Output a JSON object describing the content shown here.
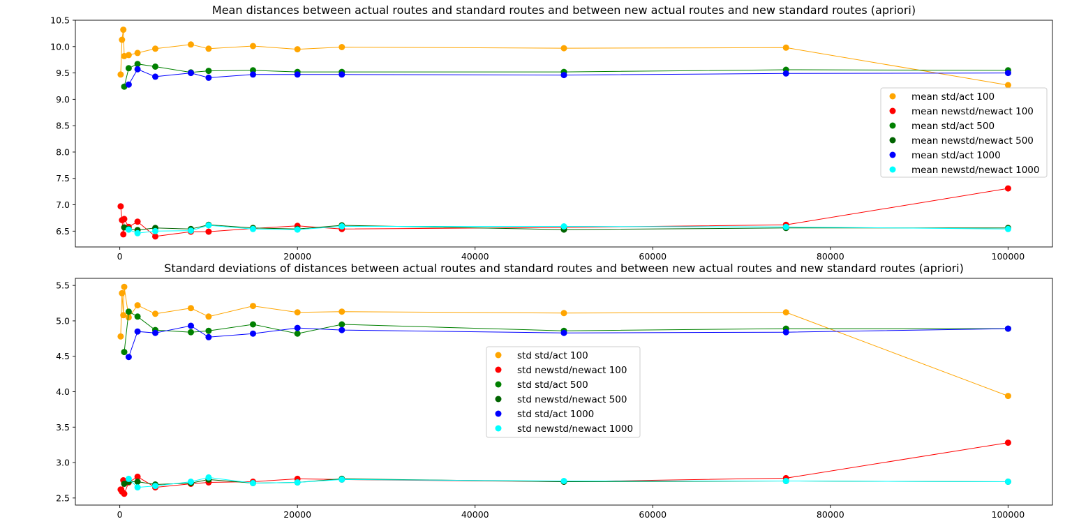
{
  "chart_data": [
    {
      "type": "line",
      "title": "Mean distances between actual routes and standard routes and between new actual routes and new standard routes (apriori)",
      "xlabel": "",
      "ylabel": "",
      "xlim": [
        -5000,
        105000
      ],
      "ylim": [
        6.2,
        10.5
      ],
      "xticks": [
        0,
        20000,
        40000,
        60000,
        80000,
        100000
      ],
      "xtick_labels": [
        "0",
        "20000",
        "40000",
        "60000",
        "80000",
        "100000"
      ],
      "yticks": [
        6.5,
        7.0,
        7.5,
        8.0,
        8.5,
        9.0,
        9.5,
        10.0,
        10.5
      ],
      "ytick_labels": [
        "6.5",
        "7.0",
        "7.5",
        "8.0",
        "8.5",
        "9.0",
        "9.5",
        "10.0",
        "10.5"
      ],
      "grid": false,
      "legend_position": "center-right",
      "x": [
        100,
        250,
        400,
        500,
        1000,
        2000,
        4000,
        8000,
        10000,
        15000,
        20000,
        25000,
        50000,
        75000,
        100000
      ],
      "series": [
        {
          "name": "mean std/act 100",
          "color": "#ffa500",
          "values": [
            9.47,
            10.13,
            10.32,
            9.82,
            9.84,
            9.88,
            9.96,
            10.04,
            9.96,
            10.01,
            9.95,
            9.99,
            9.97,
            9.98,
            9.27
          ]
        },
        {
          "name": "mean newstd/newact 100",
          "color": "#ff0000",
          "values": [
            6.97,
            6.71,
            6.44,
            6.73,
            6.58,
            6.68,
            6.4,
            6.49,
            6.49,
            6.55,
            6.6,
            6.54,
            6.57,
            6.62,
            7.31
          ]
        },
        {
          "name": "mean std/act 500",
          "color": "#008000",
          "values": [
            null,
            null,
            null,
            9.24,
            9.59,
            9.67,
            9.62,
            9.51,
            9.54,
            9.55,
            9.52,
            9.52,
            9.52,
            9.56,
            9.55
          ]
        },
        {
          "name": "mean newstd/newact 500",
          "color": "#006400",
          "values": [
            null,
            null,
            null,
            6.57,
            6.54,
            6.52,
            6.56,
            6.54,
            6.62,
            6.56,
            6.54,
            6.61,
            6.53,
            6.56,
            6.56
          ]
        },
        {
          "name": "mean std/act 1000",
          "color": "#0000ff",
          "values": [
            null,
            null,
            null,
            null,
            9.28,
            9.57,
            9.43,
            9.5,
            9.41,
            9.47,
            9.47,
            9.47,
            9.46,
            9.49,
            9.5
          ]
        },
        {
          "name": "mean newstd/newact 1000",
          "color": "#00ffff",
          "values": [
            null,
            null,
            null,
            null,
            6.53,
            6.46,
            6.5,
            6.51,
            6.61,
            6.54,
            6.53,
            6.59,
            6.59,
            6.58,
            6.54
          ]
        }
      ]
    },
    {
      "type": "line",
      "title": "Standard deviations of distances between actual routes and standard routes and between new actual routes and new standard routes (apriori)",
      "xlabel": "",
      "ylabel": "",
      "xlim": [
        -5000,
        105000
      ],
      "ylim": [
        2.4,
        5.6
      ],
      "xticks": [
        0,
        20000,
        40000,
        60000,
        80000,
        100000
      ],
      "xtick_labels": [
        "0",
        "20000",
        "40000",
        "60000",
        "80000",
        "100000"
      ],
      "yticks": [
        2.5,
        3.0,
        3.5,
        4.0,
        4.5,
        5.0,
        5.5
      ],
      "ytick_labels": [
        "2.5",
        "3.0",
        "3.5",
        "4.0",
        "4.5",
        "5.0",
        "5.5"
      ],
      "grid": false,
      "legend_position": "center",
      "x": [
        100,
        250,
        400,
        500,
        1000,
        2000,
        4000,
        8000,
        10000,
        15000,
        20000,
        25000,
        50000,
        75000,
        100000
      ],
      "series": [
        {
          "name": "std std/act 100",
          "color": "#ffa500",
          "values": [
            4.78,
            5.39,
            5.08,
            5.48,
            5.05,
            5.22,
            5.1,
            5.18,
            5.06,
            5.21,
            5.12,
            5.13,
            5.11,
            5.12,
            3.94
          ]
        },
        {
          "name": "std newstd/newact 100",
          "color": "#ff0000",
          "values": [
            2.62,
            2.59,
            2.75,
            2.56,
            2.72,
            2.8,
            2.65,
            2.7,
            2.72,
            2.73,
            2.77,
            2.76,
            2.73,
            2.78,
            3.28
          ]
        },
        {
          "name": "std std/act 500",
          "color": "#008000",
          "values": [
            null,
            null,
            null,
            4.56,
            5.13,
            5.06,
            4.87,
            4.84,
            4.86,
            4.95,
            4.82,
            4.95,
            4.86,
            4.89,
            4.89
          ]
        },
        {
          "name": "std newstd/newact 500",
          "color": "#006400",
          "values": [
            null,
            null,
            null,
            2.7,
            2.73,
            2.73,
            2.69,
            2.71,
            2.76,
            2.71,
            2.72,
            2.77,
            2.73,
            2.74,
            2.73
          ]
        },
        {
          "name": "std std/act 1000",
          "color": "#0000ff",
          "values": [
            null,
            null,
            null,
            null,
            4.49,
            4.85,
            4.83,
            4.93,
            4.77,
            4.82,
            4.9,
            4.87,
            4.83,
            4.84,
            4.89
          ]
        },
        {
          "name": "std newstd/newact 1000",
          "color": "#00ffff",
          "values": [
            null,
            null,
            null,
            null,
            2.77,
            2.65,
            2.67,
            2.73,
            2.79,
            2.71,
            2.72,
            2.76,
            2.74,
            2.74,
            2.73
          ]
        }
      ]
    }
  ]
}
